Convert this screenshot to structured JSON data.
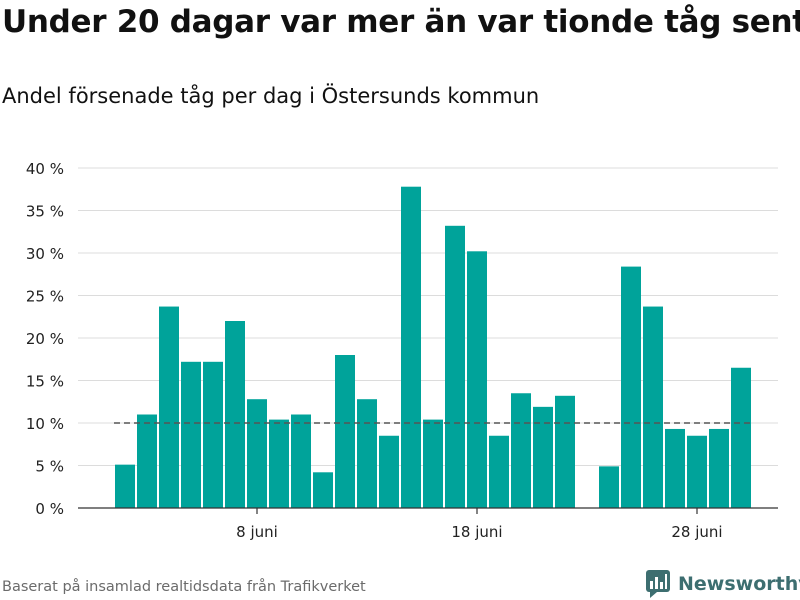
{
  "header": {
    "title": "Under 20 dagar var mer än var tionde tåg sent",
    "subtitle": "Andel försenade tåg per dag i Östersunds kommun"
  },
  "footer": {
    "source": "Baserat på insamlad realtidsdata från Trafikverket",
    "brand": "Newsworthy"
  },
  "colors": {
    "bar": "#00a39a",
    "grid": "#dcdcdc",
    "threshold": "#555555",
    "brand": "#3d6e70"
  },
  "chart_data": {
    "type": "bar",
    "title": "Under 20 dagar var mer än var tionde tåg sent",
    "subtitle": "Andel försenade tåg per dag i Östersunds kommun",
    "xlabel": "",
    "ylabel": "",
    "x_unit": "day of June",
    "x_range": [
      1,
      31
    ],
    "ylim": [
      0,
      40
    ],
    "y_ticks": [
      0,
      5,
      10,
      15,
      20,
      25,
      30,
      35,
      40
    ],
    "y_tick_labels": [
      "0 %",
      "5 %",
      "10 %",
      "15 %",
      "20 %",
      "25 %",
      "30 %",
      "35 %",
      "40 %"
    ],
    "x_ticks": [
      8,
      18,
      28
    ],
    "x_tick_labels": [
      "8 juni",
      "18 juni",
      "28 juni"
    ],
    "threshold": 10,
    "grid": true,
    "legend": "none",
    "series": [
      {
        "x": [
          2,
          3,
          4,
          5,
          6,
          7,
          8,
          9,
          10,
          11,
          12,
          13,
          14,
          15,
          16,
          17,
          18,
          19,
          20,
          21,
          22,
          23,
          24,
          25,
          26,
          27,
          28,
          29,
          30
        ],
        "values": [
          5.1,
          11.0,
          23.7,
          17.2,
          17.2,
          22.0,
          12.8,
          10.4,
          11.0,
          4.2,
          18.0,
          12.8,
          8.5,
          37.8,
          10.4,
          33.2,
          30.2,
          8.5,
          13.5,
          11.9,
          13.2,
          null,
          4.9,
          28.4,
          23.7,
          9.3,
          8.5,
          9.3,
          16.5
        ]
      }
    ]
  }
}
